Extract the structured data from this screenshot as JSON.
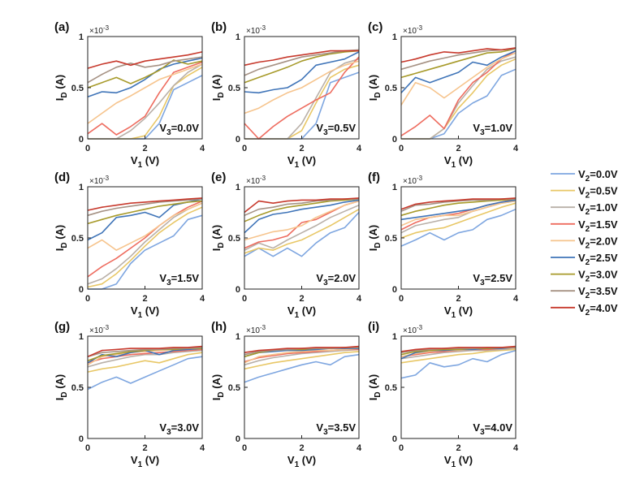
{
  "chart_data": {
    "type": "line",
    "x": [
      0,
      0.5,
      1,
      1.5,
      2,
      2.5,
      3,
      3.5,
      4
    ],
    "xlabel_main": "V",
    "xlabel_sub": "1",
    "xlabel_unit": " (V)",
    "ylabel_main": "I",
    "ylabel_sub": "D",
    "ylabel_unit": " (A)",
    "exponent_text": "×10",
    "exponent_power": "-3",
    "xlim": [
      0,
      4
    ],
    "ylim": [
      0,
      1
    ],
    "xticks": [
      "0",
      "2",
      "4"
    ],
    "yticks": [
      "0",
      "0.5",
      "1"
    ],
    "legend": {
      "placement": "right",
      "entries": [
        {
          "main": "V",
          "sub": "2",
          "rest": "=0.0V",
          "color": "#7ea6e0"
        },
        {
          "main": "V",
          "sub": "2",
          "rest": "=0.5V",
          "color": "#e8c766"
        },
        {
          "main": "V",
          "sub": "2",
          "rest": "=1.0V",
          "color": "#b9b0a8"
        },
        {
          "main": "V",
          "sub": "2",
          "rest": "=1.5V",
          "color": "#ee6c5f"
        },
        {
          "main": "V",
          "sub": "2",
          "rest": "=2.0V",
          "color": "#f6c48d"
        },
        {
          "main": "V",
          "sub": "2",
          "rest": "=2.5V",
          "color": "#3f74b8"
        },
        {
          "main": "V",
          "sub": "2",
          "rest": "=3.0V",
          "color": "#a79a2a"
        },
        {
          "main": "V",
          "sub": "2",
          "rest": "=3.5V",
          "color": "#a69284"
        },
        {
          "main": "V",
          "sub": "2",
          "rest": "=4.0V",
          "color": "#c7392c"
        }
      ]
    },
    "panels": [
      {
        "label": "(a)",
        "v3_main": "V",
        "v3_sub": "3",
        "v3_rest": "=0.0V",
        "series": [
          [
            0,
            0,
            0,
            0,
            0,
            0.15,
            0.48,
            0.55,
            0.62
          ],
          [
            0,
            0,
            0,
            0,
            0.03,
            0.22,
            0.52,
            0.62,
            0.7
          ],
          [
            0,
            0,
            0,
            0.08,
            0.2,
            0.35,
            0.52,
            0.65,
            0.73
          ],
          [
            0.05,
            0.15,
            0.04,
            0.12,
            0.22,
            0.45,
            0.65,
            0.7,
            0.75
          ],
          [
            0.15,
            0.25,
            0.35,
            0.42,
            0.5,
            0.58,
            0.63,
            0.68,
            0.73
          ],
          [
            0.41,
            0.46,
            0.45,
            0.5,
            0.58,
            0.68,
            0.73,
            0.76,
            0.79
          ],
          [
            0.5,
            0.55,
            0.6,
            0.54,
            0.6,
            0.67,
            0.77,
            0.73,
            0.76
          ],
          [
            0.55,
            0.63,
            0.7,
            0.74,
            0.7,
            0.72,
            0.76,
            0.78,
            0.8
          ],
          [
            0.69,
            0.73,
            0.76,
            0.72,
            0.76,
            0.78,
            0.8,
            0.82,
            0.85
          ]
        ]
      },
      {
        "label": "(b)",
        "v3_main": "V",
        "v3_sub": "3",
        "v3_rest": "=0.5V",
        "series": [
          [
            0,
            0,
            0,
            0,
            0,
            0.15,
            0.55,
            0.6,
            0.65
          ],
          [
            0,
            0,
            0,
            0,
            0.08,
            0.35,
            0.6,
            0.68,
            0.72
          ],
          [
            0,
            0,
            0,
            0,
            0.15,
            0.4,
            0.65,
            0.74,
            0.78
          ],
          [
            0.15,
            0,
            0.12,
            0.22,
            0.3,
            0.38,
            0.45,
            0.65,
            0.8
          ],
          [
            0.25,
            0.3,
            0.38,
            0.45,
            0.5,
            0.58,
            0.66,
            0.72,
            0.76
          ],
          [
            0.46,
            0.45,
            0.48,
            0.5,
            0.58,
            0.72,
            0.75,
            0.78,
            0.85
          ],
          [
            0.55,
            0.6,
            0.65,
            0.7,
            0.76,
            0.8,
            0.83,
            0.85,
            0.86
          ],
          [
            0.62,
            0.68,
            0.72,
            0.76,
            0.8,
            0.82,
            0.84,
            0.86,
            0.87
          ],
          [
            0.72,
            0.75,
            0.77,
            0.8,
            0.82,
            0.84,
            0.86,
            0.86,
            0.86
          ]
        ]
      },
      {
        "label": "(c)",
        "v3_main": "V",
        "v3_sub": "3",
        "v3_rest": "=1.0V",
        "series": [
          [
            0,
            0,
            0,
            0.05,
            0.25,
            0.35,
            0.42,
            0.62,
            0.68
          ],
          [
            0,
            0,
            0,
            0.1,
            0.3,
            0.45,
            0.62,
            0.72,
            0.78
          ],
          [
            0,
            0,
            0,
            0.1,
            0.35,
            0.52,
            0.68,
            0.76,
            0.8
          ],
          [
            0.03,
            0.12,
            0.23,
            0.1,
            0.38,
            0.55,
            0.65,
            0.78,
            0.86
          ],
          [
            0.33,
            0.55,
            0.5,
            0.4,
            0.5,
            0.6,
            0.7,
            0.78,
            0.84
          ],
          [
            0.45,
            0.6,
            0.55,
            0.6,
            0.65,
            0.75,
            0.72,
            0.8,
            0.86
          ],
          [
            0.6,
            0.64,
            0.68,
            0.72,
            0.76,
            0.8,
            0.84,
            0.85,
            0.88
          ],
          [
            0.68,
            0.72,
            0.76,
            0.79,
            0.82,
            0.84,
            0.86,
            0.87,
            0.88
          ],
          [
            0.75,
            0.78,
            0.82,
            0.85,
            0.84,
            0.86,
            0.88,
            0.87,
            0.89
          ]
        ]
      },
      {
        "label": "(d)",
        "v3_main": "V",
        "v3_sub": "3",
        "v3_rest": "=1.5V",
        "series": [
          [
            0,
            0,
            0.05,
            0.25,
            0.38,
            0.45,
            0.52,
            0.68,
            0.72
          ],
          [
            0.02,
            0.05,
            0.15,
            0.28,
            0.42,
            0.55,
            0.65,
            0.74,
            0.8
          ],
          [
            0.05,
            0.1,
            0.2,
            0.32,
            0.46,
            0.58,
            0.7,
            0.78,
            0.84
          ],
          [
            0.12,
            0.22,
            0.3,
            0.4,
            0.5,
            0.62,
            0.72,
            0.8,
            0.86
          ],
          [
            0.4,
            0.48,
            0.38,
            0.45,
            0.52,
            0.62,
            0.72,
            0.78,
            0.84
          ],
          [
            0.48,
            0.55,
            0.7,
            0.72,
            0.75,
            0.7,
            0.82,
            0.85,
            0.88
          ],
          [
            0.64,
            0.68,
            0.72,
            0.75,
            0.78,
            0.81,
            0.83,
            0.85,
            0.86
          ],
          [
            0.72,
            0.76,
            0.79,
            0.81,
            0.83,
            0.85,
            0.86,
            0.87,
            0.88
          ],
          [
            0.77,
            0.8,
            0.82,
            0.84,
            0.85,
            0.86,
            0.87,
            0.88,
            0.89
          ]
        ]
      },
      {
        "label": "(e)",
        "v3_main": "V",
        "v3_sub": "3",
        "v3_rest": "=2.0V",
        "series": [
          [
            0.32,
            0.4,
            0.32,
            0.4,
            0.32,
            0.45,
            0.55,
            0.6,
            0.75
          ],
          [
            0.35,
            0.4,
            0.38,
            0.44,
            0.48,
            0.55,
            0.62,
            0.7,
            0.78
          ],
          [
            0.38,
            0.45,
            0.4,
            0.48,
            0.55,
            0.62,
            0.7,
            0.76,
            0.82
          ],
          [
            0.4,
            0.46,
            0.48,
            0.52,
            0.65,
            0.68,
            0.75,
            0.82,
            0.86
          ],
          [
            0.48,
            0.52,
            0.56,
            0.58,
            0.62,
            0.7,
            0.76,
            0.82,
            0.86
          ],
          [
            0.55,
            0.68,
            0.73,
            0.75,
            0.78,
            0.8,
            0.82,
            0.85,
            0.87
          ],
          [
            0.66,
            0.72,
            0.77,
            0.8,
            0.82,
            0.84,
            0.86,
            0.87,
            0.88
          ],
          [
            0.72,
            0.78,
            0.8,
            0.83,
            0.84,
            0.86,
            0.87,
            0.88,
            0.88
          ],
          [
            0.75,
            0.86,
            0.84,
            0.86,
            0.87,
            0.87,
            0.88,
            0.88,
            0.89
          ]
        ]
      },
      {
        "label": "(f)",
        "v3_main": "V",
        "v3_sub": "3",
        "v3_rest": "=2.5V",
        "series": [
          [
            0.42,
            0.48,
            0.55,
            0.48,
            0.55,
            0.58,
            0.68,
            0.72,
            0.78
          ],
          [
            0.5,
            0.55,
            0.58,
            0.6,
            0.65,
            0.7,
            0.75,
            0.8,
            0.84
          ],
          [
            0.55,
            0.62,
            0.65,
            0.68,
            0.7,
            0.76,
            0.8,
            0.84,
            0.86
          ],
          [
            0.58,
            0.65,
            0.7,
            0.72,
            0.74,
            0.78,
            0.82,
            0.85,
            0.88
          ],
          [
            0.62,
            0.68,
            0.7,
            0.72,
            0.72,
            0.76,
            0.8,
            0.84,
            0.86
          ],
          [
            0.68,
            0.7,
            0.72,
            0.74,
            0.76,
            0.78,
            0.82,
            0.85,
            0.87
          ],
          [
            0.72,
            0.76,
            0.79,
            0.82,
            0.84,
            0.85,
            0.86,
            0.87,
            0.88
          ],
          [
            0.76,
            0.82,
            0.83,
            0.85,
            0.86,
            0.87,
            0.87,
            0.88,
            0.88
          ],
          [
            0.78,
            0.83,
            0.85,
            0.86,
            0.87,
            0.88,
            0.88,
            0.88,
            0.89
          ]
        ]
      },
      {
        "label": "(g)",
        "v3_main": "V",
        "v3_sub": "3",
        "v3_rest": "=3.0V",
        "series": [
          [
            0.48,
            0.55,
            0.6,
            0.54,
            0.6,
            0.66,
            0.72,
            0.78,
            0.8
          ],
          [
            0.65,
            0.68,
            0.7,
            0.73,
            0.76,
            0.74,
            0.78,
            0.82,
            0.84
          ],
          [
            0.7,
            0.74,
            0.77,
            0.8,
            0.82,
            0.82,
            0.84,
            0.85,
            0.86
          ],
          [
            0.74,
            0.78,
            0.8,
            0.82,
            0.83,
            0.84,
            0.85,
            0.86,
            0.87
          ],
          [
            0.72,
            0.8,
            0.82,
            0.84,
            0.85,
            0.86,
            0.87,
            0.87,
            0.88
          ],
          [
            0.74,
            0.82,
            0.8,
            0.84,
            0.86,
            0.82,
            0.86,
            0.87,
            0.88
          ],
          [
            0.76,
            0.81,
            0.83,
            0.85,
            0.86,
            0.87,
            0.87,
            0.88,
            0.88
          ],
          [
            0.8,
            0.84,
            0.85,
            0.86,
            0.87,
            0.87,
            0.88,
            0.88,
            0.89
          ],
          [
            0.8,
            0.86,
            0.87,
            0.88,
            0.88,
            0.88,
            0.89,
            0.89,
            0.9
          ]
        ]
      },
      {
        "label": "(h)",
        "v3_main": "V",
        "v3_sub": "3",
        "v3_rest": "=3.5V",
        "series": [
          [
            0.55,
            0.6,
            0.64,
            0.68,
            0.72,
            0.75,
            0.72,
            0.8,
            0.82
          ],
          [
            0.68,
            0.71,
            0.74,
            0.76,
            0.78,
            0.8,
            0.82,
            0.84,
            0.85
          ],
          [
            0.72,
            0.76,
            0.79,
            0.81,
            0.83,
            0.84,
            0.85,
            0.86,
            0.87
          ],
          [
            0.75,
            0.79,
            0.81,
            0.83,
            0.84,
            0.85,
            0.86,
            0.87,
            0.87
          ],
          [
            0.74,
            0.8,
            0.82,
            0.84,
            0.85,
            0.86,
            0.86,
            0.87,
            0.88
          ],
          [
            0.8,
            0.84,
            0.85,
            0.86,
            0.86,
            0.87,
            0.88,
            0.88,
            0.88
          ],
          [
            0.8,
            0.84,
            0.86,
            0.87,
            0.87,
            0.88,
            0.88,
            0.89,
            0.89
          ],
          [
            0.82,
            0.85,
            0.86,
            0.87,
            0.88,
            0.88,
            0.88,
            0.89,
            0.89
          ],
          [
            0.84,
            0.86,
            0.87,
            0.88,
            0.88,
            0.89,
            0.89,
            0.89,
            0.9
          ]
        ]
      },
      {
        "label": "(i)",
        "v3_main": "V",
        "v3_sub": "3",
        "v3_rest": "=4.0V",
        "series": [
          [
            0.59,
            0.62,
            0.74,
            0.7,
            0.72,
            0.78,
            0.75,
            0.82,
            0.86
          ],
          [
            0.74,
            0.76,
            0.78,
            0.8,
            0.82,
            0.83,
            0.85,
            0.86,
            0.87
          ],
          [
            0.78,
            0.8,
            0.82,
            0.84,
            0.85,
            0.86,
            0.86,
            0.87,
            0.88
          ],
          [
            0.8,
            0.82,
            0.84,
            0.85,
            0.86,
            0.87,
            0.87,
            0.88,
            0.88
          ],
          [
            0.8,
            0.83,
            0.85,
            0.86,
            0.86,
            0.87,
            0.88,
            0.88,
            0.88
          ],
          [
            0.78,
            0.84,
            0.86,
            0.86,
            0.87,
            0.87,
            0.88,
            0.88,
            0.89
          ],
          [
            0.82,
            0.85,
            0.86,
            0.87,
            0.87,
            0.88,
            0.88,
            0.89,
            0.89
          ],
          [
            0.84,
            0.86,
            0.87,
            0.88,
            0.88,
            0.88,
            0.89,
            0.89,
            0.89
          ],
          [
            0.85,
            0.87,
            0.88,
            0.88,
            0.89,
            0.89,
            0.89,
            0.89,
            0.9
          ]
        ]
      }
    ]
  }
}
